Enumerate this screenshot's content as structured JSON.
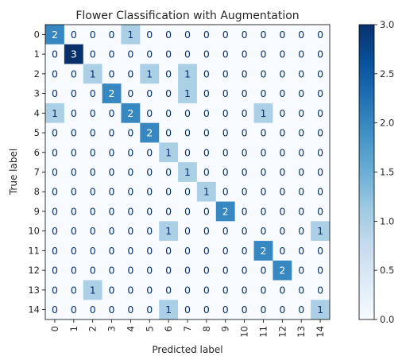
{
  "chart_data": {
    "type": "heatmap",
    "title": "Flower Classification with Augmentation",
    "xlabel": "Predicted label",
    "ylabel": "True label",
    "x_tick_labels": [
      "0",
      "1",
      "2",
      "3",
      "4",
      "5",
      "6",
      "7",
      "8",
      "9",
      "10",
      "11",
      "12",
      "13",
      "14"
    ],
    "y_tick_labels": [
      "0",
      "1",
      "2",
      "3",
      "4",
      "5",
      "6",
      "7",
      "8",
      "9",
      "10",
      "11",
      "12",
      "13",
      "14"
    ],
    "matrix": [
      [
        2,
        0,
        0,
        0,
        1,
        0,
        0,
        0,
        0,
        0,
        0,
        0,
        0,
        0,
        0
      ],
      [
        0,
        3,
        0,
        0,
        0,
        0,
        0,
        0,
        0,
        0,
        0,
        0,
        0,
        0,
        0
      ],
      [
        0,
        0,
        1,
        0,
        0,
        1,
        0,
        1,
        0,
        0,
        0,
        0,
        0,
        0,
        0
      ],
      [
        0,
        0,
        0,
        2,
        0,
        0,
        0,
        1,
        0,
        0,
        0,
        0,
        0,
        0,
        0
      ],
      [
        1,
        0,
        0,
        0,
        2,
        0,
        0,
        0,
        0,
        0,
        0,
        1,
        0,
        0,
        0
      ],
      [
        0,
        0,
        0,
        0,
        0,
        2,
        0,
        0,
        0,
        0,
        0,
        0,
        0,
        0,
        0
      ],
      [
        0,
        0,
        0,
        0,
        0,
        0,
        1,
        0,
        0,
        0,
        0,
        0,
        0,
        0,
        0
      ],
      [
        0,
        0,
        0,
        0,
        0,
        0,
        0,
        1,
        0,
        0,
        0,
        0,
        0,
        0,
        0
      ],
      [
        0,
        0,
        0,
        0,
        0,
        0,
        0,
        0,
        1,
        0,
        0,
        0,
        0,
        0,
        0
      ],
      [
        0,
        0,
        0,
        0,
        0,
        0,
        0,
        0,
        0,
        2,
        0,
        0,
        0,
        0,
        0
      ],
      [
        0,
        0,
        0,
        0,
        0,
        0,
        1,
        0,
        0,
        0,
        0,
        0,
        0,
        0,
        1
      ],
      [
        0,
        0,
        0,
        0,
        0,
        0,
        0,
        0,
        0,
        0,
        0,
        2,
        0,
        0,
        0
      ],
      [
        0,
        0,
        0,
        0,
        0,
        0,
        0,
        0,
        0,
        0,
        0,
        0,
        2,
        0,
        0
      ],
      [
        0,
        0,
        1,
        0,
        0,
        0,
        0,
        0,
        0,
        0,
        0,
        0,
        0,
        0,
        0
      ],
      [
        0,
        0,
        0,
        0,
        0,
        0,
        1,
        0,
        0,
        0,
        0,
        0,
        0,
        0,
        1
      ]
    ],
    "colormap": "Blues",
    "value_range": [
      0,
      3
    ],
    "colorbar_ticks": [
      "0.0",
      "0.5",
      "1.0",
      "1.5",
      "2.0",
      "2.5",
      "3.0"
    ],
    "grid": false
  }
}
